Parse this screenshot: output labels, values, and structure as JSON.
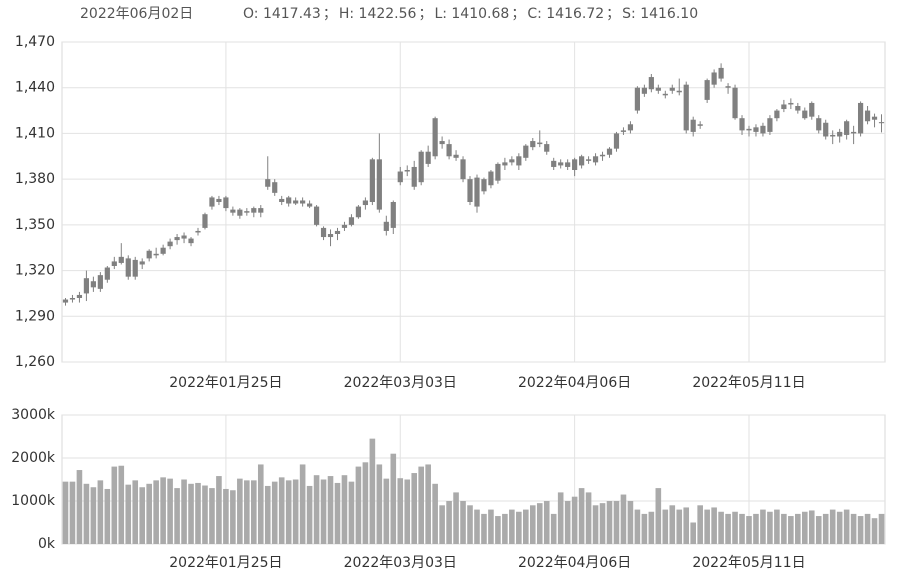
{
  "header": {
    "date": "2022年06月02日",
    "stats": [
      "O: 1417.43",
      "H: 1422.56",
      "L: 1410.68",
      "C: 1416.72",
      "S: 1416.10"
    ],
    "separator": "；"
  },
  "chart_data": {
    "type": "candlestick",
    "color": "#808080",
    "volume_color": "#aaaaaa",
    "grid": true,
    "categories": [
      null,
      null,
      null,
      null,
      null,
      null,
      null,
      null,
      null,
      null,
      null,
      null,
      null,
      null,
      null,
      null,
      null,
      null,
      null,
      null,
      null,
      null,
      null,
      "2022年01月25日",
      null,
      null,
      null,
      null,
      null,
      null,
      null,
      null,
      null,
      null,
      null,
      null,
      null,
      null,
      null,
      null,
      null,
      null,
      null,
      null,
      null,
      null,
      null,
      null,
      "2022年03月03日",
      null,
      null,
      null,
      null,
      null,
      null,
      null,
      null,
      null,
      null,
      null,
      null,
      null,
      null,
      null,
      null,
      null,
      null,
      null,
      null,
      null,
      null,
      null,
      null,
      "2022年04月06日",
      null,
      null,
      null,
      null,
      null,
      null,
      null,
      null,
      null,
      null,
      null,
      null,
      null,
      null,
      null,
      null,
      null,
      null,
      null,
      null,
      null,
      null,
      null,
      null,
      "2022年05月11日",
      null,
      null,
      null,
      null,
      null,
      null,
      null,
      null,
      null,
      null,
      null,
      null,
      null,
      null,
      null,
      null,
      null,
      null,
      null
    ],
    "ohlc": [
      [
        1299,
        1302,
        1297,
        1301
      ],
      [
        1301,
        1304,
        1299,
        1302
      ],
      [
        1302,
        1306,
        1299,
        1304
      ],
      [
        1305,
        1320,
        1300,
        1315
      ],
      [
        1313,
        1316,
        1306,
        1309
      ],
      [
        1308,
        1319,
        1306,
        1317
      ],
      [
        1314,
        1323,
        1312,
        1322
      ],
      [
        1323,
        1329,
        1321,
        1326
      ],
      [
        1325,
        1338,
        1324,
        1329
      ],
      [
        1328,
        1330,
        1314,
        1316
      ],
      [
        1316,
        1329,
        1314,
        1327
      ],
      [
        1326,
        1328,
        1321,
        1324
      ],
      [
        1328,
        1334,
        1326,
        1333
      ],
      [
        1331,
        1335,
        1328,
        1330
      ],
      [
        1331,
        1337,
        1330,
        1335
      ],
      [
        1336,
        1341,
        1334,
        1339
      ],
      [
        1340,
        1344,
        1337,
        1342
      ],
      [
        1341,
        1345,
        1338,
        1343
      ],
      [
        1341,
        1342,
        1336,
        1338
      ],
      [
        1345,
        1348,
        1343,
        1346
      ],
      [
        1348,
        1358,
        1347,
        1357
      ],
      [
        1362,
        1369,
        1360,
        1368
      ],
      [
        1367,
        1369,
        1363,
        1365
      ],
      [
        1368,
        1369,
        1359,
        1361
      ],
      [
        1360,
        1362,
        1356,
        1358
      ],
      [
        1356,
        1361,
        1354,
        1360
      ],
      [
        1359,
        1361,
        1356,
        1358
      ],
      [
        1358,
        1362,
        1355,
        1361
      ],
      [
        1361,
        1363,
        1355,
        1358
      ],
      [
        1375,
        1395,
        1373,
        1380
      ],
      [
        1378,
        1380,
        1369,
        1371
      ],
      [
        1367,
        1369,
        1363,
        1365
      ],
      [
        1364,
        1369,
        1362,
        1368
      ],
      [
        1366,
        1368,
        1363,
        1364
      ],
      [
        1364,
        1368,
        1362,
        1366
      ],
      [
        1364,
        1366,
        1361,
        1362
      ],
      [
        1362,
        1363,
        1349,
        1350
      ],
      [
        1348,
        1349,
        1340,
        1342
      ],
      [
        1342,
        1347,
        1336,
        1344
      ],
      [
        1344,
        1348,
        1340,
        1346
      ],
      [
        1348,
        1352,
        1346,
        1350
      ],
      [
        1350,
        1357,
        1349,
        1355
      ],
      [
        1355,
        1363,
        1354,
        1362
      ],
      [
        1363,
        1368,
        1360,
        1366
      ],
      [
        1365,
        1394,
        1363,
        1393
      ],
      [
        1393,
        1410,
        1358,
        1360
      ],
      [
        1352,
        1356,
        1343,
        1346
      ],
      [
        1348,
        1366,
        1344,
        1365
      ],
      [
        1378,
        1388,
        1376,
        1385
      ],
      [
        1385,
        1389,
        1382,
        1386
      ],
      [
        1388,
        1392,
        1373,
        1375
      ],
      [
        1378,
        1399,
        1376,
        1398
      ],
      [
        1398,
        1402,
        1388,
        1390
      ],
      [
        1395,
        1421,
        1393,
        1420
      ],
      [
        1405,
        1408,
        1400,
        1403
      ],
      [
        1403,
        1406,
        1393,
        1395
      ],
      [
        1396,
        1399,
        1392,
        1394
      ],
      [
        1393,
        1395,
        1378,
        1380
      ],
      [
        1380,
        1382,
        1363,
        1365
      ],
      [
        1362,
        1383,
        1358,
        1381
      ],
      [
        1372,
        1381,
        1370,
        1380
      ],
      [
        1376,
        1386,
        1374,
        1385
      ],
      [
        1379,
        1391,
        1377,
        1390
      ],
      [
        1389,
        1394,
        1386,
        1391
      ],
      [
        1391,
        1395,
        1389,
        1393
      ],
      [
        1389,
        1397,
        1386,
        1395
      ],
      [
        1394,
        1403,
        1392,
        1402
      ],
      [
        1401,
        1407,
        1399,
        1405
      ],
      [
        1404,
        1412,
        1401,
        1403
      ],
      [
        1403,
        1405,
        1396,
        1398
      ],
      [
        1392,
        1394,
        1386,
        1388
      ],
      [
        1389,
        1393,
        1387,
        1391
      ],
      [
        1391,
        1393,
        1386,
        1388
      ],
      [
        1386,
        1394,
        1382,
        1393
      ],
      [
        1389,
        1396,
        1387,
        1395
      ],
      [
        1392,
        1395,
        1390,
        1393
      ],
      [
        1391,
        1397,
        1389,
        1395
      ],
      [
        1395,
        1398,
        1392,
        1396
      ],
      [
        1396,
        1401,
        1394,
        1400
      ],
      [
        1400,
        1411,
        1398,
        1410
      ],
      [
        1411,
        1414,
        1409,
        1412
      ],
      [
        1412,
        1418,
        1410,
        1416
      ],
      [
        1425,
        1441,
        1423,
        1440
      ],
      [
        1440,
        1442,
        1434,
        1436
      ],
      [
        1439,
        1449,
        1437,
        1447
      ],
      [
        1440,
        1442,
        1436,
        1438
      ],
      [
        1436,
        1438,
        1433,
        1435
      ],
      [
        1438,
        1442,
        1436,
        1440
      ],
      [
        1437,
        1446,
        1435,
        1438
      ],
      [
        1442,
        1444,
        1410,
        1412
      ],
      [
        1411,
        1421,
        1408,
        1419
      ],
      [
        1415,
        1418,
        1413,
        1416
      ],
      [
        1432,
        1446,
        1430,
        1445
      ],
      [
        1442,
        1452,
        1440,
        1450
      ],
      [
        1446,
        1456,
        1444,
        1453
      ],
      [
        1441,
        1443,
        1436,
        1440
      ],
      [
        1440,
        1442,
        1419,
        1420
      ],
      [
        1420,
        1422,
        1409,
        1412
      ],
      [
        1412,
        1415,
        1408,
        1413
      ],
      [
        1411,
        1416,
        1408,
        1414
      ],
      [
        1410,
        1417,
        1408,
        1415
      ],
      [
        1411,
        1422,
        1409,
        1420
      ],
      [
        1420,
        1426,
        1418,
        1425
      ],
      [
        1426,
        1432,
        1424,
        1429
      ],
      [
        1429,
        1433,
        1426,
        1430
      ],
      [
        1428,
        1430,
        1423,
        1425
      ],
      [
        1425,
        1427,
        1419,
        1420
      ],
      [
        1421,
        1431,
        1419,
        1430
      ],
      [
        1420,
        1422,
        1410,
        1412
      ],
      [
        1417,
        1419,
        1406,
        1408
      ],
      [
        1409,
        1412,
        1403,
        1408
      ],
      [
        1408,
        1413,
        1404,
        1411
      ],
      [
        1409,
        1419,
        1406,
        1418
      ],
      [
        1411,
        1415,
        1403,
        1410
      ],
      [
        1410,
        1431,
        1408,
        1430
      ],
      [
        1425,
        1428,
        1416,
        1418
      ],
      [
        1419,
        1423,
        1414,
        1421
      ],
      [
        1417.43,
        1422.56,
        1410.68,
        1416.72
      ]
    ],
    "volume": [
      1450,
      1450,
      1720,
      1400,
      1320,
      1480,
      1280,
      1800,
      1820,
      1380,
      1480,
      1320,
      1400,
      1480,
      1550,
      1520,
      1300,
      1500,
      1400,
      1420,
      1360,
      1300,
      1580,
      1280,
      1250,
      1520,
      1480,
      1480,
      1850,
      1350,
      1450,
      1550,
      1480,
      1500,
      1850,
      1350,
      1600,
      1500,
      1580,
      1420,
      1600,
      1450,
      1800,
      1900,
      2450,
      1850,
      1520,
      2100,
      1530,
      1500,
      1650,
      1800,
      1850,
      1400,
      900,
      1000,
      1200,
      1000,
      900,
      800,
      700,
      800,
      650,
      700,
      800,
      750,
      800,
      900,
      950,
      1000,
      700,
      1200,
      1000,
      1100,
      1300,
      1200,
      900,
      950,
      1000,
      1000,
      1150,
      1000,
      800,
      700,
      750,
      1300,
      800,
      900,
      800,
      850,
      500,
      900,
      800,
      850,
      750,
      700,
      750,
      700,
      650,
      700,
      800,
      750,
      800,
      700,
      650,
      700,
      750,
      780,
      650,
      700,
      800,
      750,
      800,
      700,
      650,
      700,
      600,
      700
    ],
    "ylim": [
      1260,
      1470
    ],
    "yticks": [
      {
        "value": 1260,
        "label": "1,260"
      },
      {
        "value": 1290,
        "label": "1,290"
      },
      {
        "value": 1320,
        "label": "1,320"
      },
      {
        "value": 1350,
        "label": "1,350"
      },
      {
        "value": 1380,
        "label": "1,380"
      },
      {
        "value": 1410,
        "label": "1,410"
      },
      {
        "value": 1440,
        "label": "1,440"
      },
      {
        "value": 1470,
        "label": "1,470"
      }
    ],
    "y2lim": [
      0,
      3000
    ],
    "y2ticks": [
      {
        "value": 0,
        "label": "0k"
      },
      {
        "value": 1000,
        "label": "1000k"
      },
      {
        "value": 2000,
        "label": "2000k"
      },
      {
        "value": 3000,
        "label": "3000k"
      }
    ]
  }
}
